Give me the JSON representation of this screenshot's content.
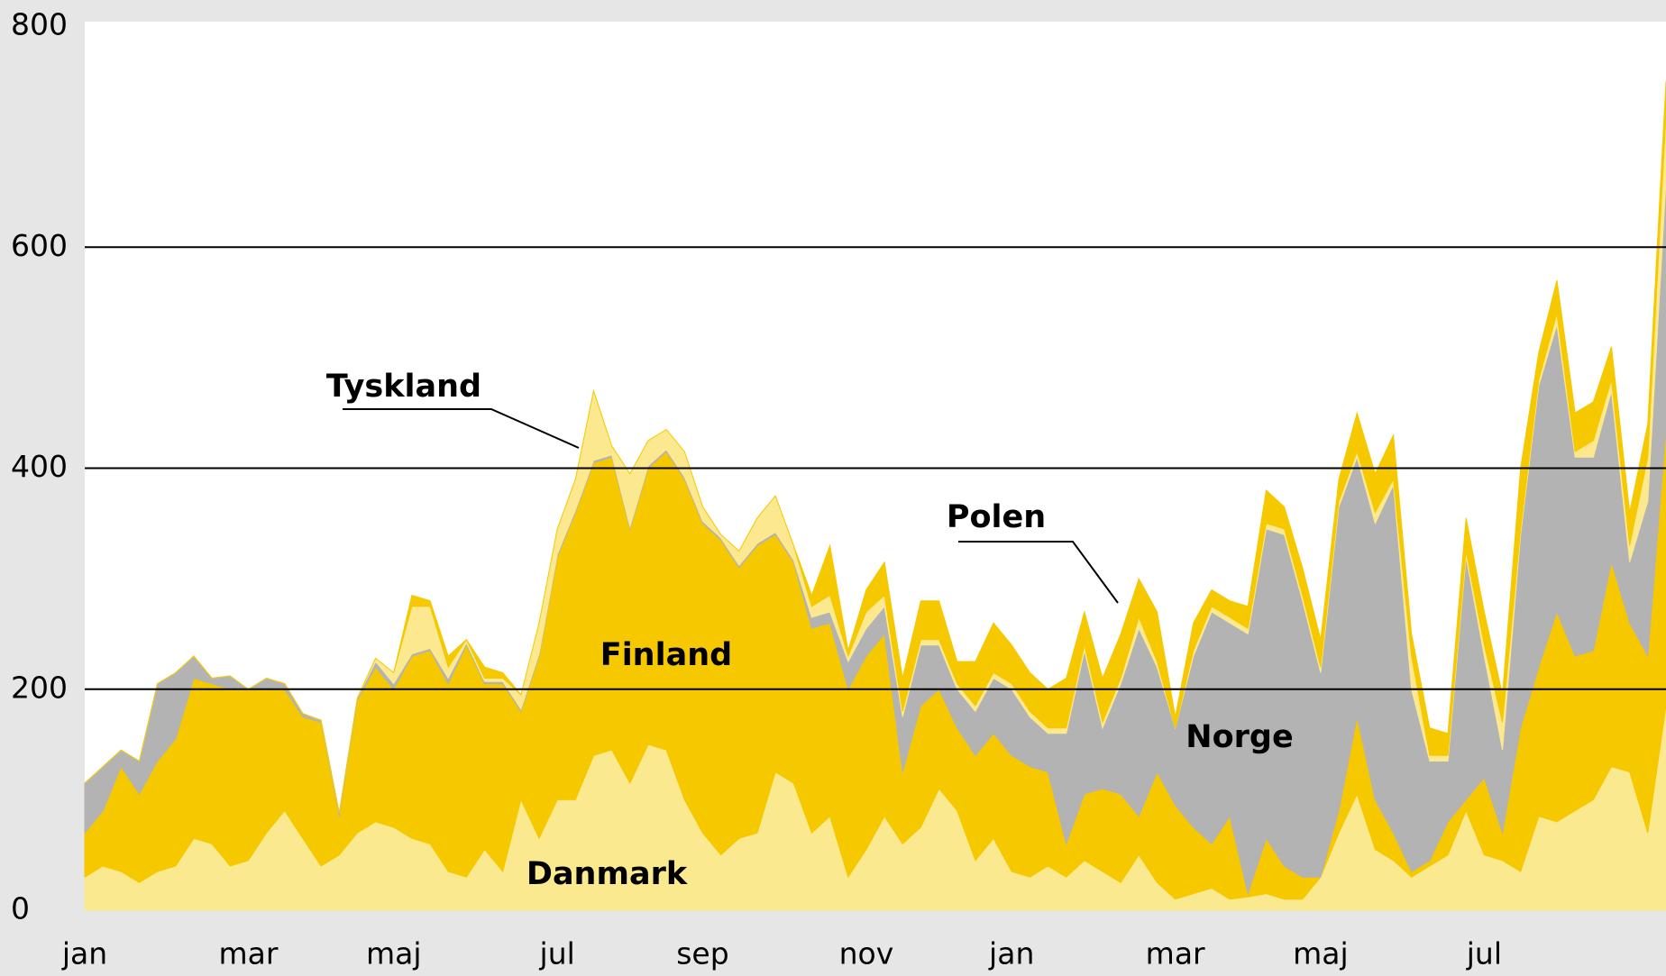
{
  "chart_data": {
    "type": "stacked_area",
    "categories": [
      "jan",
      null,
      null,
      null,
      null,
      null,
      null,
      null,
      null,
      "mar",
      null,
      null,
      null,
      null,
      null,
      null,
      null,
      "maj",
      null,
      null,
      null,
      null,
      null,
      null,
      null,
      null,
      "jul",
      null,
      null,
      null,
      null,
      null,
      null,
      null,
      "sep",
      null,
      null,
      null,
      null,
      null,
      null,
      null,
      null,
      "nov",
      null,
      null,
      null,
      null,
      null,
      null,
      null,
      "jan",
      null,
      null,
      null,
      null,
      null,
      null,
      null,
      null,
      "mar",
      null,
      null,
      null,
      null,
      null,
      null,
      null,
      "maj",
      null,
      null,
      null,
      null,
      null,
      null,
      null,
      null,
      "jul",
      null,
      null,
      null,
      null,
      null,
      null,
      null,
      null,
      null,
      null
    ],
    "ylim": [
      0,
      800
    ],
    "yticks": [
      0,
      200,
      400,
      600,
      800
    ],
    "grid": true,
    "series": [
      {
        "name": "Danmark",
        "color": "#fbe98f",
        "values": [
          30,
          40,
          35,
          25,
          35,
          40,
          65,
          60,
          40,
          45,
          70,
          90,
          65,
          40,
          50,
          70,
          80,
          75,
          65,
          60,
          35,
          30,
          55,
          35,
          100,
          65,
          100,
          100,
          140,
          145,
          115,
          150,
          145,
          100,
          70,
          50,
          65,
          70,
          125,
          115,
          70,
          85,
          30,
          55,
          85,
          60,
          75,
          110,
          90,
          45,
          65,
          35,
          30,
          40,
          30,
          45,
          35,
          25,
          50,
          25,
          10,
          15,
          20,
          10,
          12,
          15,
          10,
          10,
          30,
          70,
          105,
          55,
          45,
          30,
          40,
          50,
          90,
          50,
          45,
          35,
          85,
          80,
          90,
          100,
          130,
          125,
          70,
          185
        ]
      },
      {
        "name": "Finland",
        "color": "#f5c800",
        "values": [
          40,
          50,
          95,
          80,
          100,
          115,
          145,
          145,
          160,
          155,
          130,
          110,
          110,
          130,
          35,
          120,
          140,
          125,
          165,
          175,
          170,
          210,
          150,
          170,
          80,
          165,
          220,
          260,
          265,
          265,
          230,
          250,
          270,
          290,
          280,
          285,
          245,
          260,
          215,
          200,
          185,
          175,
          170,
          175,
          165,
          65,
          110,
          90,
          75,
          95,
          95,
          105,
          100,
          85,
          30,
          60,
          75,
          80,
          35,
          100,
          85,
          60,
          40,
          75,
          3,
          50,
          30,
          20,
          0,
          20,
          70,
          45,
          25,
          5,
          5,
          30,
          10,
          70,
          25,
          130,
          135,
          190,
          140,
          135,
          185,
          135,
          160,
          250
        ]
      },
      {
        "name": "Norge",
        "color": "#b3b3b3",
        "values": [
          45,
          40,
          15,
          30,
          70,
          60,
          20,
          5,
          12,
          0,
          10,
          5,
          3,
          2,
          3,
          2,
          5,
          5,
          2,
          2,
          5,
          2,
          2,
          2,
          2,
          2,
          2,
          2,
          2,
          2,
          2,
          2,
          2,
          2,
          2,
          2,
          2,
          2,
          2,
          2,
          10,
          10,
          25,
          25,
          25,
          50,
          55,
          40,
          35,
          40,
          50,
          60,
          45,
          35,
          100,
          130,
          55,
          100,
          170,
          95,
          70,
          155,
          210,
          175,
          235,
          280,
          300,
          250,
          185,
          275,
          235,
          250,
          315,
          165,
          90,
          55,
          220,
          110,
          75,
          175,
          255,
          260,
          180,
          175,
          155,
          55,
          140,
          225
        ]
      },
      {
        "name": "Tyskland",
        "color": "#fce98f",
        "values": [
          0,
          0,
          0,
          0,
          0,
          0,
          0,
          0,
          0,
          0,
          0,
          0,
          0,
          0,
          0,
          0,
          3,
          10,
          43,
          38,
          10,
          3,
          3,
          3,
          13,
          28,
          23,
          28,
          63,
          8,
          48,
          23,
          18,
          23,
          13,
          3,
          13,
          23,
          33,
          13,
          10,
          15,
          5,
          15,
          10,
          5,
          5,
          5,
          5,
          5,
          5,
          5,
          5,
          5,
          5,
          5,
          5,
          5,
          10,
          5,
          0,
          5,
          5,
          5,
          5,
          5,
          5,
          5,
          5,
          5,
          5,
          10,
          5,
          30,
          5,
          5,
          5,
          10,
          25,
          5,
          5,
          10,
          5,
          15,
          10,
          15,
          40,
          60
        ]
      },
      {
        "name": "Polen",
        "color": "#f5c800",
        "values": [
          0,
          0,
          0,
          0,
          0,
          0,
          0,
          0,
          0,
          0,
          0,
          0,
          0,
          0,
          0,
          0,
          0,
          0,
          10,
          5,
          10,
          0,
          10,
          5,
          0,
          0,
          0,
          0,
          0,
          0,
          0,
          0,
          0,
          0,
          0,
          0,
          0,
          0,
          0,
          0,
          10,
          45,
          5,
          20,
          30,
          30,
          35,
          35,
          20,
          40,
          45,
          35,
          35,
          35,
          45,
          30,
          40,
          40,
          35,
          45,
          10,
          25,
          15,
          15,
          20,
          30,
          20,
          25,
          25,
          20,
          35,
          35,
          40,
          20,
          25,
          20,
          30,
          30,
          25,
          55,
          25,
          30,
          35,
          35,
          30,
          30,
          30,
          30
        ]
      }
    ]
  }
}
